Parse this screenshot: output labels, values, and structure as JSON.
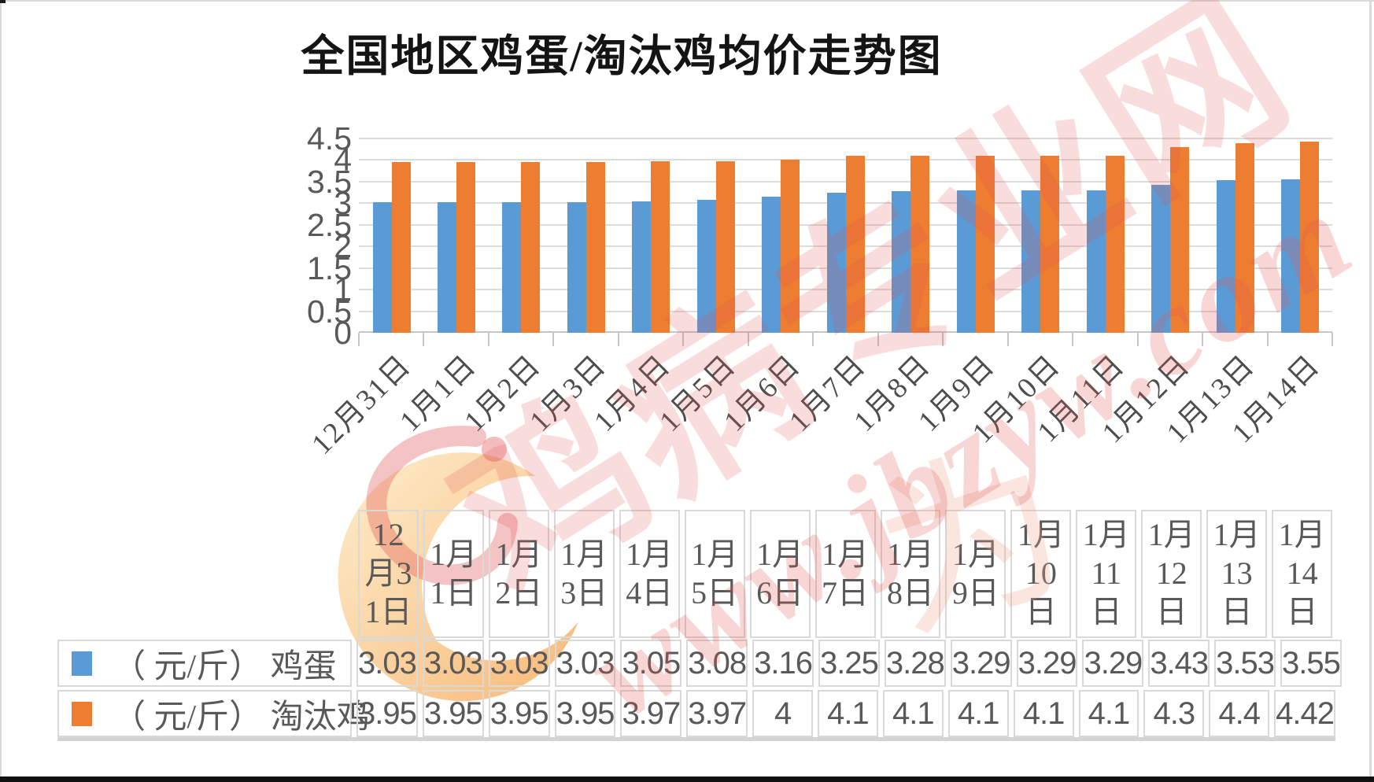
{
  "chart_data": {
    "type": "bar",
    "title": "全国地区鸡蛋/淘汰鸡均价走势图",
    "categories": [
      "12月31日",
      "1月1日",
      "1月2日",
      "1月3日",
      "1月4日",
      "1月5日",
      "1月6日",
      "1月7日",
      "1月8日",
      "1月9日",
      "1月10日",
      "1月11日",
      "1月12日",
      "1月13日",
      "1月14日"
    ],
    "series": [
      {
        "name": "（元/斤） 鸡蛋",
        "semantic": "egg",
        "color": "#5b9bd5",
        "values": [
          3.03,
          3.03,
          3.03,
          3.03,
          3.05,
          3.08,
          3.16,
          3.25,
          3.28,
          3.29,
          3.29,
          3.29,
          3.43,
          3.53,
          3.55
        ]
      },
      {
        "name": "（元/斤） 淘汰鸡",
        "semantic": "culled-chicken",
        "color": "#ed7d31",
        "values": [
          3.95,
          3.95,
          3.95,
          3.95,
          3.97,
          3.97,
          4,
          4.1,
          4.1,
          4.1,
          4.1,
          4.1,
          4.3,
          4.4,
          4.42
        ]
      }
    ],
    "xlabel": "",
    "ylabel": "",
    "unit": "元/斤",
    "ylim": [
      0,
      4.5
    ],
    "ytick_step": 0.5,
    "yticks_labels": [
      "4.5",
      "4",
      "3.5",
      "3",
      "2.5",
      "2",
      "1.5",
      "1",
      "0.5",
      "0"
    ],
    "grid": true,
    "legend_position": "table-left-column"
  },
  "table": {
    "header_lines": [
      [
        "12",
        "月3",
        "1日"
      ],
      [
        "1月",
        "1日"
      ],
      [
        "1月",
        "2日"
      ],
      [
        "1月",
        "3日"
      ],
      [
        "1月",
        "4日"
      ],
      [
        "1月",
        "5日"
      ],
      [
        "1月",
        "6日"
      ],
      [
        "1月",
        "7日"
      ],
      [
        "1月",
        "8日"
      ],
      [
        "1月",
        "9日"
      ],
      [
        "1月",
        "10",
        "日"
      ],
      [
        "1月",
        "11",
        "日"
      ],
      [
        "1月",
        "12",
        "日"
      ],
      [
        "1月",
        "13",
        "日"
      ],
      [
        "1月",
        "14",
        "日"
      ]
    ],
    "rows": [
      {
        "label": "（ 元/斤） 鸡蛋",
        "legend_color": "#5b9bd5",
        "values": [
          "3.03",
          "3.03",
          "3.03",
          "3.03",
          "3.05",
          "3.08",
          "3.16",
          "3.25",
          "3.28",
          "3.29",
          "3.29",
          "3.29",
          "3.43",
          "3.53",
          "3.55"
        ]
      },
      {
        "label": "（ 元/斤） 淘汰鸡",
        "legend_color": "#ed7d31",
        "values": [
          "3.95",
          "3.95",
          "3.95",
          "3.95",
          "3.97",
          "3.97",
          "4",
          "4.1",
          "4.1",
          "4.1",
          "4.1",
          "4.1",
          "4.3",
          "4.4",
          "4.42"
        ]
      }
    ]
  },
  "watermark": {
    "brand": "鸡病专业网",
    "url": "www.jbzyw.com",
    "script_glyph": "为",
    "color": "#e05252",
    "moon_colors": [
      "#fde9c0",
      "#f6a44f"
    ]
  }
}
